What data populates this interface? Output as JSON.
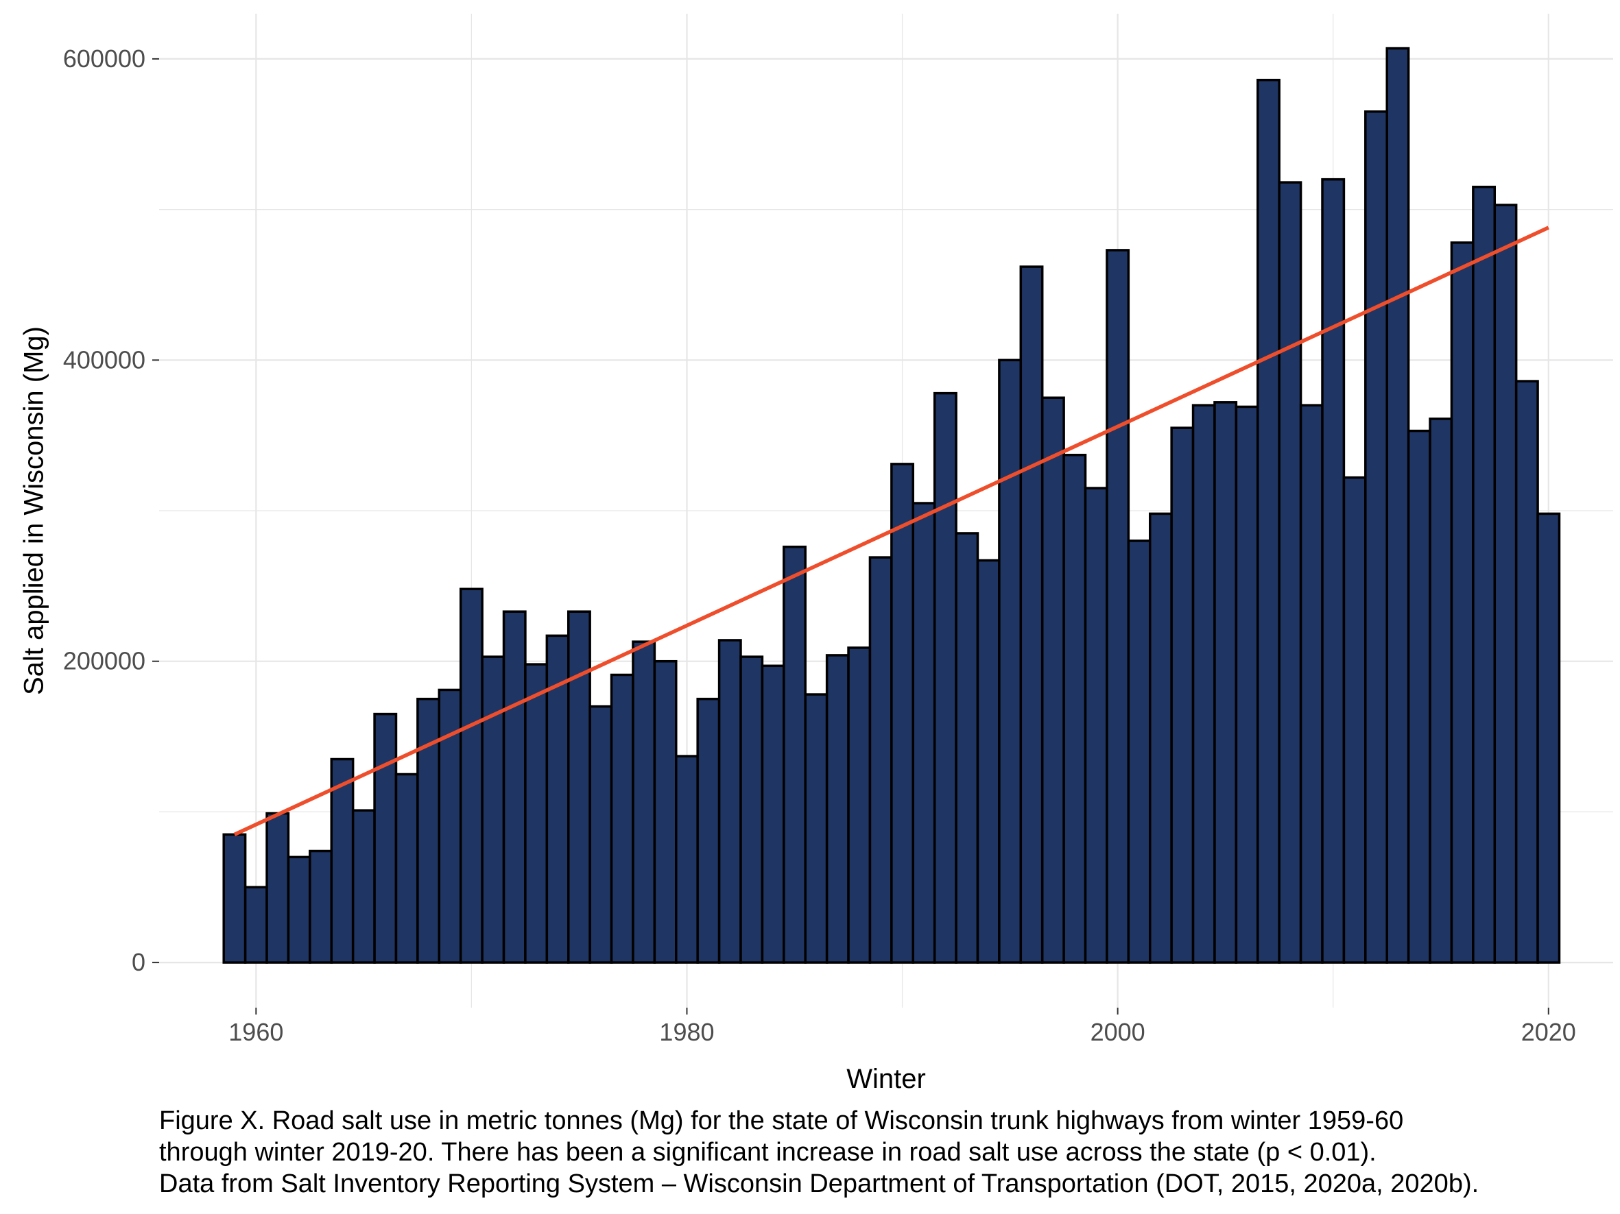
{
  "chart_data": {
    "type": "bar",
    "xlabel": "Winter",
    "ylabel": "Salt applied in Wisconsin (Mg)",
    "xlim": [
      1955.5,
      2023.0
    ],
    "ylim": [
      -30000,
      630000
    ],
    "x_ticks": [
      1960,
      1980,
      2000,
      2020
    ],
    "y_ticks": [
      0,
      200000,
      400000,
      600000
    ],
    "grid": true,
    "colors": {
      "bar_fill": "#1f3564",
      "bar_stroke": "#000000",
      "trend": "#ee4e2b",
      "grid": "#e6e6e6"
    },
    "x": [
      1959,
      1960,
      1961,
      1962,
      1963,
      1964,
      1965,
      1966,
      1967,
      1968,
      1969,
      1970,
      1971,
      1972,
      1973,
      1974,
      1975,
      1976,
      1977,
      1978,
      1979,
      1980,
      1981,
      1982,
      1983,
      1984,
      1985,
      1986,
      1987,
      1988,
      1989,
      1990,
      1991,
      1992,
      1993,
      1994,
      1995,
      1996,
      1997,
      1998,
      1999,
      2000,
      2001,
      2002,
      2003,
      2004,
      2005,
      2006,
      2007,
      2008,
      2009,
      2010,
      2011,
      2012,
      2013,
      2014,
      2015,
      2016,
      2017,
      2018,
      2019,
      2020
    ],
    "values": [
      85000,
      50000,
      99000,
      70000,
      74000,
      135000,
      101000,
      165000,
      125000,
      175000,
      181000,
      248000,
      203000,
      233000,
      198000,
      217000,
      233000,
      170000,
      191000,
      213000,
      200000,
      137000,
      175000,
      214000,
      203000,
      197000,
      276000,
      178000,
      204000,
      209000,
      269000,
      331000,
      305000,
      378000,
      285000,
      267000,
      400000,
      462000,
      375000,
      337000,
      315000,
      473000,
      280000,
      298000,
      355000,
      370000,
      372000,
      369000,
      586000,
      518000,
      370000,
      520000,
      322000,
      565000,
      607000,
      353000,
      361000,
      478000,
      515000,
      503000,
      386000,
      298000
    ],
    "trend": {
      "x": [
        1959,
        2020
      ],
      "y": [
        85000,
        488000
      ]
    }
  },
  "caption": [
    "Figure X. Road salt use in metric tonnes (Mg) for the state of Wisconsin trunk highways from winter 1959-60",
    "through winter 2019-20. There has been a significant increase in road salt use across the state (p < 0.01).",
    "Data from Salt Inventory Reporting System – Wisconsin Department of Transportation (DOT, 2015, 2020a, 2020b)."
  ]
}
